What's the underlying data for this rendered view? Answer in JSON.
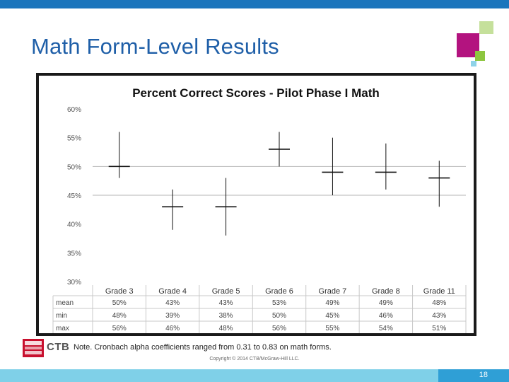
{
  "slide": {
    "title": "Math Form-Level Results",
    "note": "Note. Cronbach alpha coefficients ranged from 0.31 to 0.83 on math forms.",
    "copyright": "Copyright © 2014 CTB/McGraw-Hill LLC.",
    "page_number": "18",
    "logo_text": "CTB",
    "logo_colors": {
      "red": "#c8102e"
    }
  },
  "theme": {
    "top_bar": "#1b75bc",
    "title_color": "#1f5fa8",
    "bottom_bar_light": "#7fd0e8",
    "bottom_bar_dark": "#2f9fd6",
    "deco_magenta": "#b3137f",
    "deco_green": "#8dc63f",
    "deco_light_green": "#c5e09b",
    "deco_cyan": "#8fd3e8"
  },
  "chart_data": {
    "type": "high-low-mean",
    "title": "Percent Correct Scores - Pilot Phase I Math",
    "categories": [
      "Grade 3",
      "Grade 4",
      "Grade 5",
      "Grade 6",
      "Grade 7",
      "Grade 8",
      "Grade 11"
    ],
    "series": [
      {
        "name": "mean",
        "values": [
          50,
          43,
          43,
          53,
          49,
          49,
          48
        ]
      },
      {
        "name": "min",
        "values": [
          48,
          39,
          38,
          50,
          45,
          46,
          43
        ]
      },
      {
        "name": "max",
        "values": [
          56,
          46,
          48,
          56,
          55,
          54,
          51
        ]
      }
    ],
    "table_rows": [
      {
        "label": "mean",
        "cells": [
          "50%",
          "43%",
          "43%",
          "53%",
          "49%",
          "49%",
          "48%"
        ]
      },
      {
        "label": "min",
        "cells": [
          "48%",
          "39%",
          "38%",
          "50%",
          "45%",
          "46%",
          "43%"
        ]
      },
      {
        "label": "max",
        "cells": [
          "56%",
          "46%",
          "48%",
          "56%",
          "55%",
          "54%",
          "51%"
        ]
      }
    ],
    "y_ticks": [
      "60%",
      "55%",
      "50%",
      "45%",
      "40%",
      "35%",
      "30%"
    ],
    "ylim": [
      30,
      60
    ],
    "gridlines": [
      45,
      50
    ]
  }
}
